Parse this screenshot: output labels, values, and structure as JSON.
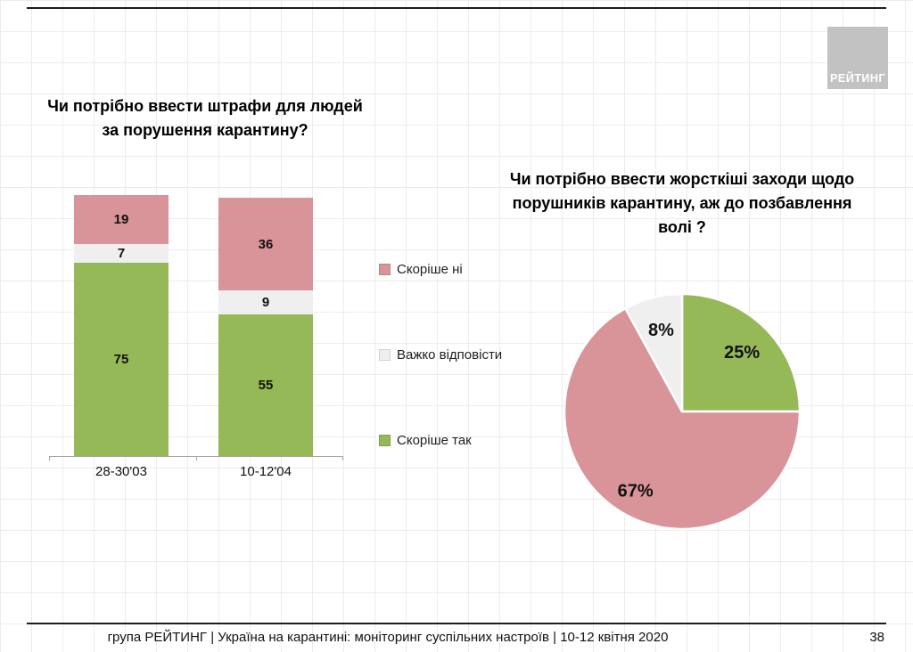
{
  "slide": {
    "logo_text": "РЕЙТИНГ",
    "footer_text": "група РЕЙТИНГ | Україна на карантині: моніторинг суспільних настроїв  | 10-12 квітня  2020",
    "page_number": "38"
  },
  "colors": {
    "pink": "#d89499",
    "grey": "#efefef",
    "green": "#94b956"
  },
  "chart_data": [
    {
      "type": "bar",
      "stacked": true,
      "title_lines": [
        "Чи потрібно ввести штрафи для людей",
        "за порушення карантину?"
      ],
      "categories": [
        "28-30'03",
        "10-12'04"
      ],
      "series": [
        {
          "name": "Скоріше так",
          "color": "#94b956",
          "values": [
            75,
            55
          ]
        },
        {
          "name": "Важко відповісти",
          "color": "#efefef",
          "values": [
            7,
            9
          ]
        },
        {
          "name": "Скоріше ні",
          "color": "#d89499",
          "values": [
            19,
            36
          ]
        }
      ],
      "legend_position": "right",
      "legend_order": [
        "Скоріше ні",
        "Важко відповісти",
        "Скоріше так"
      ],
      "ylim": [
        0,
        101
      ],
      "grid": false
    },
    {
      "type": "pie",
      "title_lines": [
        "Чи потрібно ввести жорсткіші заходи щодо",
        "порушників карантину, аж до позбавлення",
        "волі ?"
      ],
      "slices": [
        {
          "label": "Скоріше так",
          "value": 25,
          "color": "#94b956"
        },
        {
          "label": "Скоріше ні",
          "value": 67,
          "color": "#d89499"
        },
        {
          "label": "Важко відповісти",
          "value": 8,
          "color": "#efefef"
        }
      ],
      "start_angle_deg": -90,
      "direction": "clockwise",
      "label_suffix": "%"
    }
  ]
}
